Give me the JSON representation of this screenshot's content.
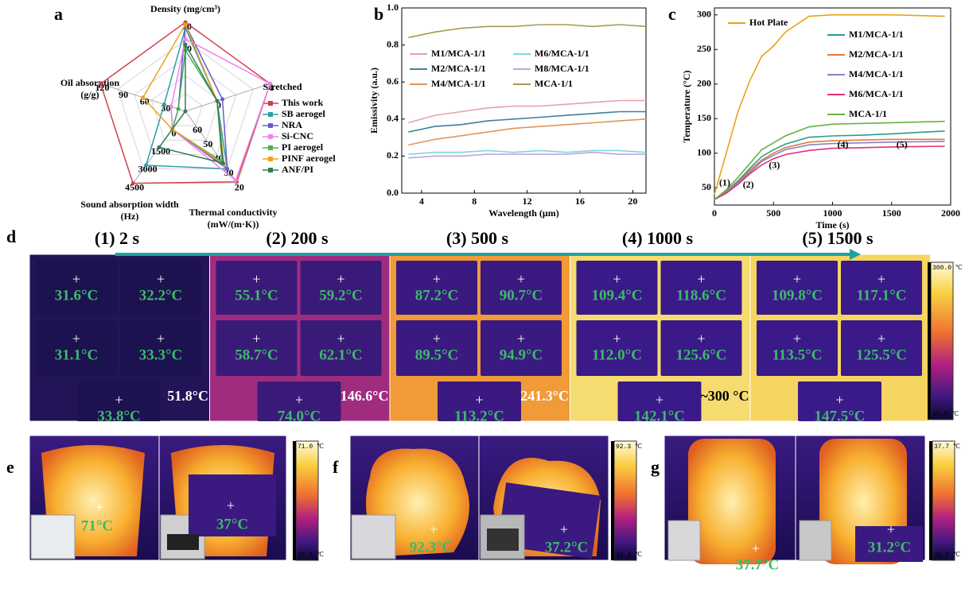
{
  "panel_labels": [
    "a",
    "b",
    "c",
    "d",
    "e",
    "f",
    "g"
  ],
  "chart_data": [
    {
      "type": "radar",
      "axes": [
        {
          "label": [
            "Density (mg/cm³)"
          ],
          "lim": [
            100,
            20
          ],
          "ticks": [
            20,
            40
          ]
        },
        {
          "label": [
            "Stretched"
          ],
          "lim": [
            -0.6,
            1
          ],
          "ticks": [
            0,
            1
          ]
        },
        {
          "label": [
            "Thermal conductivity",
            "(mW/(m·K))"
          ],
          "lim": [
            70,
            20
          ],
          "ticks": [
            20,
            30,
            40,
            50,
            60
          ]
        },
        {
          "label": [
            "Sound absorption width",
            "(Hz)"
          ],
          "lim": [
            -1500,
            4500
          ],
          "ticks": [
            0,
            1500,
            3000,
            4500
          ]
        },
        {
          "label": [
            "Oil absorption",
            "(g/g)"
          ],
          "lim": [
            0,
            120
          ],
          "ticks": [
            30,
            60,
            90,
            120
          ]
        }
      ],
      "series": [
        {
          "name": "This work",
          "color": "#d0404a",
          "values": [
            20,
            1,
            21,
            4500,
            120
          ]
        },
        {
          "name": "SB aerogel",
          "color": "#2a9fa8",
          "values": [
            25,
            0,
            30,
            3000,
            30
          ]
        },
        {
          "name": "NRA",
          "color": "#6a5acd",
          "values": [
            22,
            0.1,
            30,
            0,
            10
          ]
        },
        {
          "name": "Si-CNC",
          "color": "#ee82ee",
          "values": [
            35,
            1,
            22,
            0,
            20
          ]
        },
        {
          "name": "PI aerogel",
          "color": "#4caf50",
          "values": [
            45,
            0,
            35,
            0,
            10
          ]
        },
        {
          "name": "PINF aerogel",
          "color": "#f0a020",
          "values": [
            22,
            0,
            33,
            0,
            60
          ]
        },
        {
          "name": "ANF/PI",
          "color": "#2e7d5b",
          "values": [
            40,
            0,
            34,
            1500,
            0
          ]
        }
      ]
    },
    {
      "type": "line",
      "xlabel": "Wavelength (μm)",
      "ylabel": "Emissivity (a.u.)",
      "x": [
        3,
        5,
        7,
        9,
        11,
        13,
        15,
        17,
        19,
        21
      ],
      "xlim": [
        2.5,
        21
      ],
      "xticks": [
        4,
        8,
        12,
        16,
        20
      ],
      "ylim": [
        0,
        1
      ],
      "yticks": [
        {
          "value": 0,
          "label": "0.0"
        },
        {
          "value": 0.2,
          "label": "0.2"
        },
        {
          "value": 0.4,
          "label": "0.4"
        },
        {
          "value": 0.6,
          "label": "0.6"
        },
        {
          "value": 0.8,
          "label": "0.8"
        },
        {
          "value": 1,
          "label": "1.0"
        }
      ],
      "series": [
        {
          "name": "M1/MCA-1/1",
          "color": "#e8a0a8",
          "values": [
            0.38,
            0.42,
            0.44,
            0.46,
            0.47,
            0.47,
            0.48,
            0.49,
            0.5,
            0.5
          ]
        },
        {
          "name": "M2/MCA-1/1",
          "color": "#3d7fa0",
          "values": [
            0.33,
            0.36,
            0.37,
            0.39,
            0.4,
            0.41,
            0.42,
            0.43,
            0.44,
            0.44
          ]
        },
        {
          "name": "M4/MCA-1/1",
          "color": "#e0955a",
          "values": [
            0.26,
            0.29,
            0.31,
            0.33,
            0.35,
            0.36,
            0.37,
            0.38,
            0.39,
            0.4
          ]
        },
        {
          "name": "M6/MCA-1/1",
          "color": "#7dd8d8",
          "values": [
            0.21,
            0.22,
            0.22,
            0.23,
            0.22,
            0.23,
            0.22,
            0.23,
            0.23,
            0.22
          ]
        },
        {
          "name": "M8/MCA-1/1",
          "color": "#b8a8e0",
          "values": [
            0.19,
            0.2,
            0.2,
            0.21,
            0.21,
            0.21,
            0.21,
            0.22,
            0.21,
            0.21
          ]
        },
        {
          "name": "MCA-1/1",
          "color": "#a89a50",
          "values": [
            0.84,
            0.87,
            0.89,
            0.9,
            0.9,
            0.91,
            0.91,
            0.9,
            0.91,
            0.9
          ]
        }
      ]
    },
    {
      "type": "line",
      "xlabel": "Time (s)",
      "ylabel": "Temperature (°C)",
      "x": [
        0,
        100,
        200,
        300,
        400,
        500,
        600,
        800,
        1000,
        1250,
        1500,
        1950
      ],
      "xlim": [
        0,
        2000
      ],
      "xticks": [
        0,
        500,
        1000,
        1500,
        2000
      ],
      "ylim": [
        25,
        310
      ],
      "yticks": [
        50,
        100,
        150,
        200,
        250,
        300
      ],
      "annotations": [
        "(1)",
        "(2)",
        "(3)",
        "(4)",
        "(5)"
      ],
      "series": [
        {
          "name": "Hot Plate",
          "color": "#e8a317",
          "values": [
            40,
            100,
            160,
            205,
            240,
            255,
            275,
            298,
            300,
            300,
            300,
            298
          ]
        },
        {
          "name": "M1/MCA-1/1",
          "color": "#2a9d8f",
          "values": [
            33,
            45,
            60,
            78,
            95,
            105,
            113,
            123,
            125,
            126,
            128,
            132
          ]
        },
        {
          "name": "M2/MCA-1/1",
          "color": "#e07b39",
          "values": [
            33,
            44,
            58,
            75,
            90,
            100,
            108,
            116,
            118,
            119,
            120,
            120
          ]
        },
        {
          "name": "M4/MCA-1/1",
          "color": "#8a7fc7",
          "values": [
            33,
            43,
            57,
            72,
            88,
            97,
            105,
            112,
            114,
            115,
            116,
            117
          ]
        },
        {
          "name": "M6/MCA-1/1",
          "color": "#e0307a",
          "values": [
            33,
            42,
            55,
            70,
            83,
            92,
            98,
            104,
            107,
            108,
            109,
            110
          ]
        },
        {
          "name": "MCA-1/1",
          "color": "#6ab23f",
          "values": [
            33,
            47,
            65,
            85,
            105,
            115,
            125,
            138,
            142,
            143,
            144,
            146
          ]
        }
      ]
    }
  ],
  "thermal_d": {
    "colorbar": [
      "300.0 ℃",
      "25.0 ℃"
    ],
    "frames": [
      {
        "label": "(1) 2 s",
        "samples": [
          "31.6°C",
          "32.2°C",
          "31.1°C",
          "33.3°C",
          "33.8°C"
        ],
        "plate": "51.8°C"
      },
      {
        "label": "(2) 200 s",
        "samples": [
          "55.1°C",
          "59.2°C",
          "58.7°C",
          "62.1°C",
          "74.0°C"
        ],
        "plate": "146.6°C"
      },
      {
        "label": "(3) 500 s",
        "samples": [
          "87.2°C",
          "90.7°C",
          "89.5°C",
          "94.9°C",
          "113.2°C"
        ],
        "plate": "241.3°C"
      },
      {
        "label": "(4) 1000 s",
        "samples": [
          "109.4°C",
          "118.6°C",
          "112.0°C",
          "125.6°C",
          "142.1°C"
        ],
        "plate": "~300 °C"
      },
      {
        "label": "(5) 1500 s",
        "samples": [
          "109.8°C",
          "117.1°C",
          "113.5°C",
          "125.5°C",
          "147.5°C"
        ]
      }
    ]
  },
  "thermal_e": {
    "temps": [
      "71°C",
      "37°C"
    ],
    "colorbar": [
      "71.0 ℃",
      "28.5 ℃"
    ]
  },
  "thermal_f": {
    "temps": [
      "92.3°C",
      "37.2°C"
    ],
    "colorbar": [
      "92.3 ℃",
      "31.3 ℃"
    ]
  },
  "thermal_g": {
    "temps": [
      "37.7°C",
      "31.2°C"
    ],
    "colorbar": [
      "37.7 ℃",
      "30.0 ℃"
    ]
  }
}
